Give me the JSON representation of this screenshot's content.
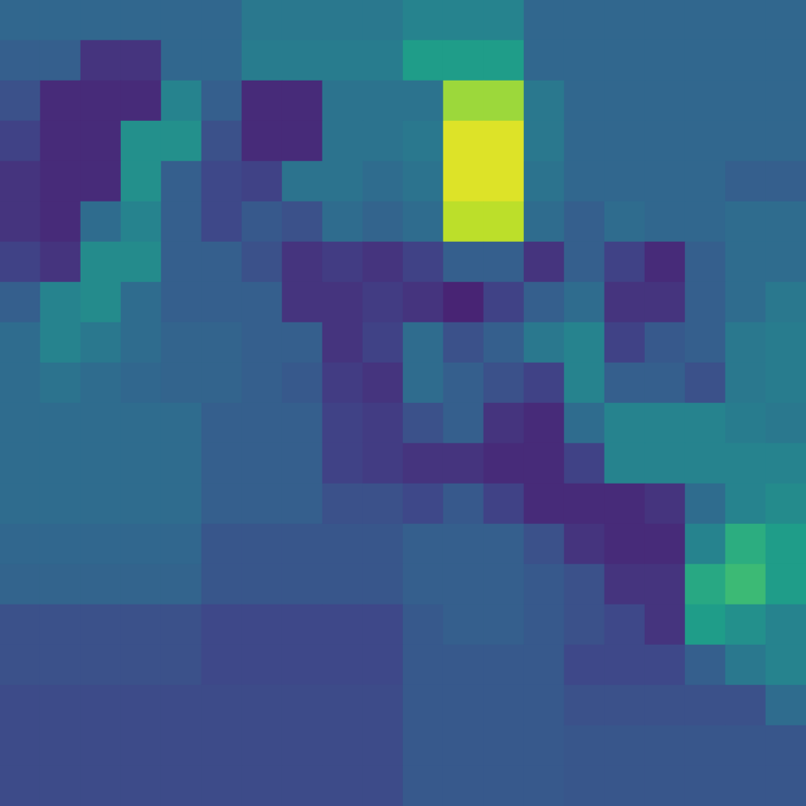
{
  "chart_data": {
    "type": "heatmap",
    "color": "viridis",
    "tick_labels": false,
    "grid": false,
    "zlim": [
      0,
      1
    ],
    "cells": [
      [
        0.33,
        0.33,
        0.33,
        0.33,
        0.33,
        0.33,
        0.4,
        0.4,
        0.4,
        0.4,
        0.45,
        0.45,
        0.45,
        0.33,
        0.33,
        0.33,
        0.33,
        0.33,
        0.33,
        0.33
      ],
      [
        0.3,
        0.3,
        0.15,
        0.15,
        0.33,
        0.33,
        0.42,
        0.42,
        0.42,
        0.42,
        0.55,
        0.55,
        0.55,
        0.33,
        0.33,
        0.33,
        0.33,
        0.33,
        0.33,
        0.33
      ],
      [
        0.25,
        0.12,
        0.12,
        0.12,
        0.45,
        0.3,
        0.12,
        0.12,
        0.38,
        0.38,
        0.38,
        0.85,
        0.85,
        0.4,
        0.33,
        0.33,
        0.33,
        0.33,
        0.33,
        0.33
      ],
      [
        0.2,
        0.12,
        0.12,
        0.5,
        0.5,
        0.25,
        0.12,
        0.12,
        0.38,
        0.38,
        0.4,
        0.95,
        0.95,
        0.4,
        0.33,
        0.33,
        0.33,
        0.33,
        0.33,
        0.33
      ],
      [
        0.15,
        0.12,
        0.12,
        0.5,
        0.3,
        0.22,
        0.2,
        0.38,
        0.38,
        0.35,
        0.38,
        0.95,
        0.95,
        0.38,
        0.33,
        0.33,
        0.33,
        0.33,
        0.3,
        0.3
      ],
      [
        0.15,
        0.12,
        0.35,
        0.45,
        0.3,
        0.22,
        0.28,
        0.25,
        0.35,
        0.32,
        0.35,
        0.9,
        0.9,
        0.35,
        0.3,
        0.35,
        0.33,
        0.33,
        0.35,
        0.35
      ],
      [
        0.2,
        0.15,
        0.48,
        0.48,
        0.3,
        0.3,
        0.25,
        0.15,
        0.18,
        0.15,
        0.2,
        0.3,
        0.3,
        0.15,
        0.3,
        0.2,
        0.12,
        0.3,
        0.35,
        0.35
      ],
      [
        0.3,
        0.45,
        0.48,
        0.35,
        0.3,
        0.3,
        0.3,
        0.15,
        0.15,
        0.18,
        0.15,
        0.1,
        0.2,
        0.3,
        0.35,
        0.15,
        0.15,
        0.3,
        0.35,
        0.4
      ],
      [
        0.35,
        0.45,
        0.4,
        0.35,
        0.32,
        0.32,
        0.3,
        0.3,
        0.15,
        0.2,
        0.35,
        0.25,
        0.3,
        0.4,
        0.45,
        0.2,
        0.28,
        0.3,
        0.4,
        0.42
      ],
      [
        0.35,
        0.38,
        0.35,
        0.33,
        0.32,
        0.32,
        0.3,
        0.28,
        0.18,
        0.15,
        0.35,
        0.3,
        0.25,
        0.2,
        0.45,
        0.3,
        0.3,
        0.25,
        0.4,
        0.42
      ],
      [
        0.35,
        0.35,
        0.35,
        0.35,
        0.35,
        0.3,
        0.3,
        0.3,
        0.2,
        0.18,
        0.25,
        0.3,
        0.15,
        0.12,
        0.35,
        0.45,
        0.45,
        0.45,
        0.42,
        0.4
      ],
      [
        0.35,
        0.35,
        0.35,
        0.35,
        0.35,
        0.3,
        0.3,
        0.3,
        0.2,
        0.18,
        0.15,
        0.15,
        0.12,
        0.12,
        0.2,
        0.45,
        0.45,
        0.45,
        0.45,
        0.45
      ],
      [
        0.35,
        0.35,
        0.35,
        0.35,
        0.35,
        0.3,
        0.3,
        0.3,
        0.25,
        0.25,
        0.22,
        0.28,
        0.2,
        0.12,
        0.12,
        0.12,
        0.15,
        0.35,
        0.45,
        0.48
      ],
      [
        0.33,
        0.33,
        0.33,
        0.33,
        0.33,
        0.27,
        0.27,
        0.27,
        0.27,
        0.27,
        0.3,
        0.3,
        0.3,
        0.25,
        0.15,
        0.12,
        0.12,
        0.45,
        0.62,
        0.55
      ],
      [
        0.32,
        0.32,
        0.32,
        0.32,
        0.32,
        0.27,
        0.27,
        0.27,
        0.27,
        0.27,
        0.3,
        0.3,
        0.3,
        0.28,
        0.25,
        0.15,
        0.15,
        0.6,
        0.68,
        0.55
      ],
      [
        0.25,
        0.25,
        0.25,
        0.25,
        0.25,
        0.22,
        0.22,
        0.22,
        0.22,
        0.22,
        0.28,
        0.3,
        0.3,
        0.28,
        0.25,
        0.22,
        0.15,
        0.55,
        0.5,
        0.45
      ],
      [
        0.25,
        0.25,
        0.25,
        0.25,
        0.25,
        0.22,
        0.22,
        0.22,
        0.22,
        0.22,
        0.28,
        0.28,
        0.28,
        0.28,
        0.22,
        0.22,
        0.22,
        0.3,
        0.4,
        0.45
      ],
      [
        0.23,
        0.23,
        0.23,
        0.23,
        0.23,
        0.23,
        0.23,
        0.23,
        0.23,
        0.23,
        0.28,
        0.28,
        0.28,
        0.28,
        0.25,
        0.25,
        0.25,
        0.25,
        0.25,
        0.35
      ],
      [
        0.23,
        0.23,
        0.23,
        0.23,
        0.23,
        0.23,
        0.23,
        0.23,
        0.23,
        0.23,
        0.28,
        0.28,
        0.28,
        0.28,
        0.27,
        0.27,
        0.27,
        0.27,
        0.27,
        0.27
      ],
      [
        0.23,
        0.23,
        0.23,
        0.23,
        0.23,
        0.23,
        0.23,
        0.23,
        0.23,
        0.23,
        0.28,
        0.28,
        0.28,
        0.28,
        0.27,
        0.27,
        0.27,
        0.27,
        0.27,
        0.27
      ]
    ]
  }
}
